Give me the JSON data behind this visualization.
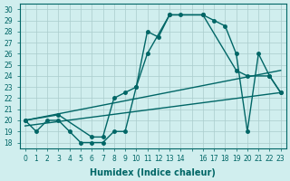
{
  "xlabel": "Humidex (Indice chaleur)",
  "background_color": "#d0eeee",
  "grid_color": "#aacccc",
  "line_color": "#006666",
  "xlim": [
    -0.5,
    23.5
  ],
  "ylim": [
    17.5,
    30.5
  ],
  "yticks": [
    18,
    19,
    20,
    21,
    22,
    23,
    24,
    25,
    26,
    27,
    28,
    29,
    30
  ],
  "xticks": [
    0,
    1,
    2,
    3,
    4,
    5,
    6,
    7,
    8,
    9,
    10,
    11,
    12,
    13,
    14,
    15,
    16,
    17,
    18,
    19,
    20,
    21,
    22,
    23
  ],
  "xtick_labels": [
    "0",
    "1",
    "2",
    "3",
    "4",
    "5",
    "6",
    "7",
    "8",
    "9",
    "10",
    "11",
    "12",
    "13",
    "14",
    "",
    "16",
    "17",
    "18",
    "19",
    "20",
    "21",
    "22",
    "23"
  ],
  "line1_x": [
    0,
    1,
    2,
    3,
    4,
    5,
    6,
    7,
    8,
    9,
    10,
    11,
    12,
    13,
    14,
    16,
    17,
    18,
    19,
    20,
    21,
    22,
    23
  ],
  "line1_y": [
    20,
    19,
    20,
    20,
    19,
    18,
    18,
    18,
    19,
    19,
    23,
    28,
    27.5,
    29.5,
    29.5,
    29.5,
    29,
    28.5,
    26,
    19,
    26,
    24,
    22.5
  ],
  "line2_x": [
    0,
    3,
    6,
    7,
    8,
    9,
    10,
    11,
    13,
    16,
    19,
    20,
    22,
    23
  ],
  "line2_y": [
    20,
    20.5,
    18.5,
    18.5,
    22,
    22.5,
    23,
    26,
    29.5,
    29.5,
    24.5,
    24,
    24,
    22.5
  ],
  "line3_x": [
    0,
    23
  ],
  "line3_y": [
    19.5,
    22.5
  ],
  "line4_x": [
    0,
    23
  ],
  "line4_y": [
    20,
    24.5
  ]
}
